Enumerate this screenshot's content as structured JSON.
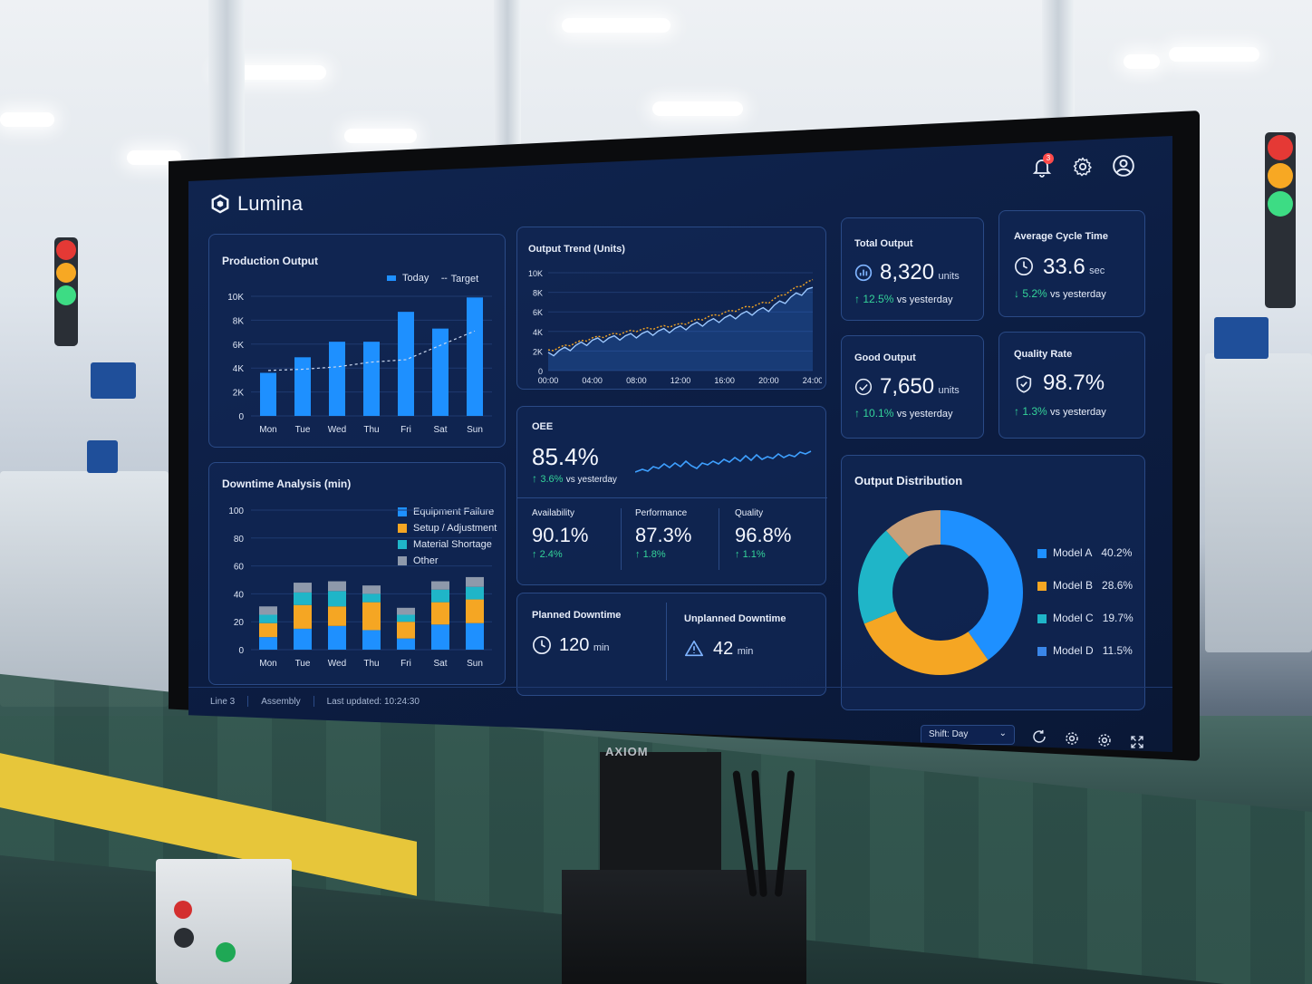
{
  "app": {
    "name": "Lumina",
    "notification_count": "3",
    "monitor_brand": "AXIOM"
  },
  "production_output": {
    "title": "Production Output",
    "legend_today": "Today",
    "legend_target": "Target"
  },
  "output_trend": {
    "title": "Output Trend (Units)"
  },
  "downtime": {
    "title": "Downtime Analysis (min)",
    "legend": [
      "Equipment Failure",
      "Setup / Adjustment",
      "Material Shortage",
      "Other"
    ]
  },
  "kpis": {
    "total_output": {
      "title": "Total Output",
      "value": "8,320",
      "unit": "units",
      "delta": "12.5%",
      "vs": "vs yesterday"
    },
    "avg_cycle": {
      "title": "Average Cycle Time",
      "value": "33.6",
      "unit": "sec",
      "delta": "5.2%",
      "vs": "vs yesterday"
    },
    "good_output": {
      "title": "Good Output",
      "value": "7,650",
      "unit": "units",
      "delta": "10.1%",
      "vs": "vs yesterday"
    },
    "quality_rate": {
      "title": "Quality Rate",
      "value": "98.7%",
      "delta": "1.3%",
      "vs": "vs yesterday"
    }
  },
  "oee": {
    "title": "OEE",
    "value": "85.4%",
    "delta": "3.6%",
    "vs": "vs yesterday",
    "availability": {
      "label": "Availability",
      "value": "90.1%",
      "delta": "2.4%"
    },
    "performance": {
      "label": "Performance",
      "value": "87.3%",
      "delta": "1.8%"
    },
    "quality": {
      "label": "Quality",
      "value": "96.8%",
      "delta": "1.1%"
    }
  },
  "downtime_summary": {
    "planned_label": "Planned Downtime",
    "planned_value": "120",
    "planned_unit": "min",
    "unplanned_label": "Unplanned Downtime",
    "unplanned_value": "42",
    "unplanned_unit": "min"
  },
  "distribution": {
    "title": "Output Distribution"
  },
  "footer": {
    "line": "Line 3",
    "area": "Assembly",
    "updated": "Last updated: 10:24:30",
    "shift_select": "Shift: Day"
  },
  "colors": {
    "accent_blue": "#1e90ff",
    "orange": "#f5a623",
    "cyan": "#1fb5c8",
    "tan": "#c8a07a",
    "gray": "#8e99ab",
    "green": "#34d399"
  },
  "icons": {
    "notifications": "bell-icon",
    "settings": "gear-icon",
    "profile": "user-circle-icon",
    "refresh": "refresh-icon",
    "fullscreen": "expand-icon"
  },
  "chart_data": [
    {
      "type": "bar",
      "title": "Production Output",
      "categories": [
        "Mon",
        "Tue",
        "Wed",
        "Thu",
        "Fri",
        "Sat",
        "Sun"
      ],
      "series": [
        {
          "name": "Today",
          "values": [
            3600,
            4900,
            6200,
            6200,
            8700,
            7300,
            9900
          ]
        },
        {
          "name": "Target",
          "values": [
            3800,
            3900,
            4100,
            4500,
            4700,
            5900,
            7100
          ]
        }
      ],
      "ylim": [
        0,
        10000
      ],
      "yticks": [
        "0",
        "2K",
        "4K",
        "6K",
        "8K",
        "10K"
      ],
      "legend": "top-right"
    },
    {
      "type": "line",
      "title": "Output Trend (Units)",
      "x": [
        "00:00",
        "04:00",
        "08:00",
        "12:00",
        "16:00",
        "20:00",
        "24:00"
      ],
      "series": [
        {
          "values": [
            1600,
            3000,
            3600,
            4300,
            5300,
            6300,
            8500
          ]
        },
        {
          "values": [
            2000,
            3300,
            4100,
            4700,
            5900,
            7000,
            9300
          ]
        }
      ],
      "ylim": [
        0,
        10000
      ],
      "yticks": [
        "0",
        "2K",
        "4K",
        "6K",
        "8K",
        "10K"
      ]
    },
    {
      "type": "bar",
      "title": "Downtime Analysis (min)",
      "categories": [
        "Mon",
        "Tue",
        "Wed",
        "Thu",
        "Fri",
        "Sat",
        "Sun"
      ],
      "series": [
        {
          "name": "Equipment Failure",
          "values": [
            9,
            15,
            17,
            14,
            8,
            18,
            19
          ]
        },
        {
          "name": "Setup / Adjustment",
          "values": [
            10,
            17,
            14,
            20,
            12,
            16,
            17
          ]
        },
        {
          "name": "Material Shortage",
          "values": [
            6,
            9,
            11,
            6,
            5,
            9,
            9
          ]
        },
        {
          "name": "Other",
          "values": [
            6,
            7,
            7,
            6,
            5,
            6,
            7
          ]
        }
      ],
      "stacked": true,
      "ylim": [
        0,
        100
      ],
      "yticks": [
        "0",
        "20",
        "40",
        "60",
        "80",
        "100"
      ],
      "legend": "top-right"
    },
    {
      "type": "pie",
      "title": "Output Distribution",
      "categories": [
        "Model A",
        "Model B",
        "Model C",
        "Model D"
      ],
      "values": [
        40.2,
        28.6,
        19.7,
        11.5
      ],
      "labels": [
        "40.2%",
        "28.6%",
        "19.7%",
        "11.5%"
      ]
    }
  ]
}
